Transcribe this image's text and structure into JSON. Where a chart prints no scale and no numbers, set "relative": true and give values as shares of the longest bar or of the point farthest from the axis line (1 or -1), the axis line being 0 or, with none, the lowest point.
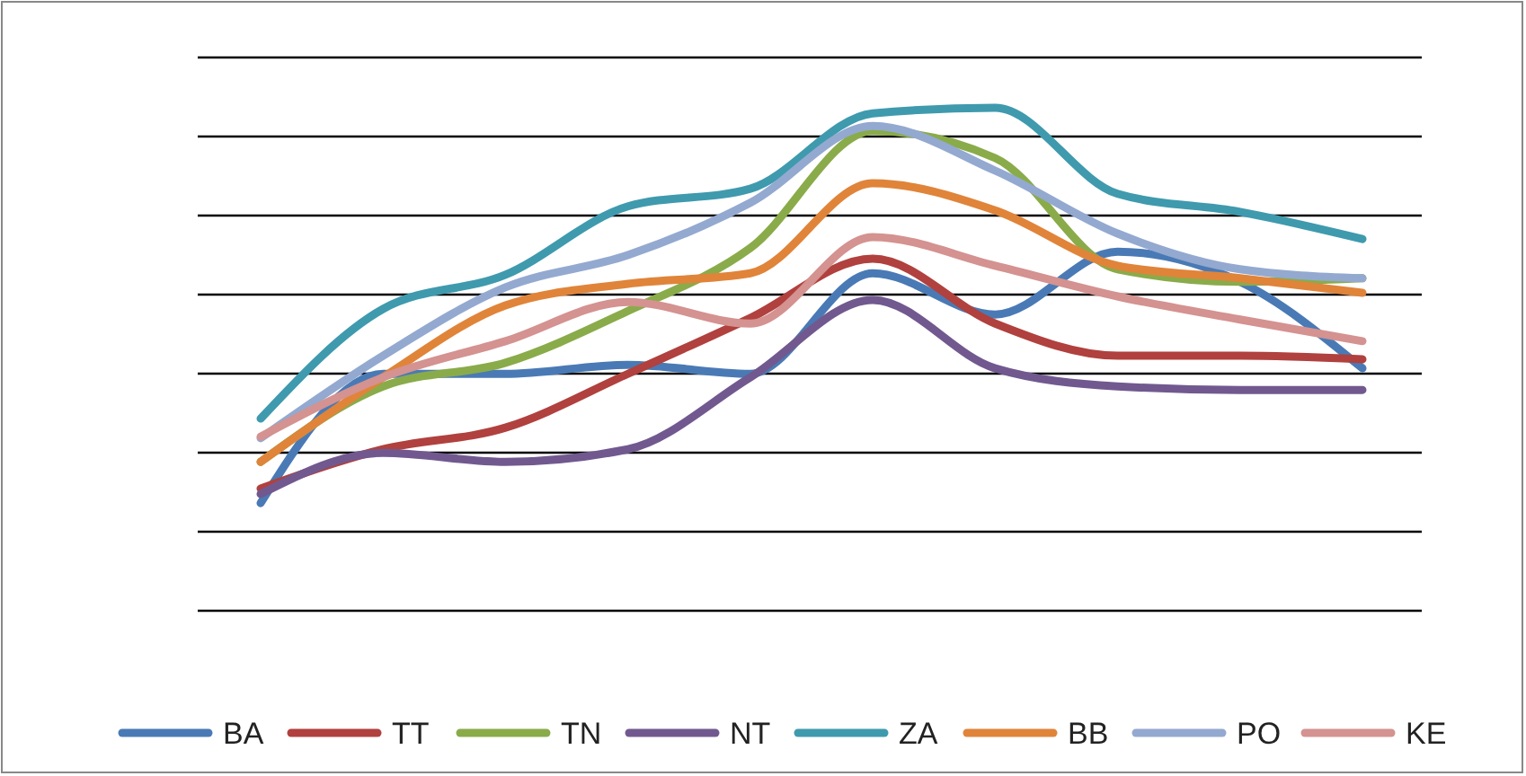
{
  "chart_data": {
    "type": "line",
    "relative": true,
    "grid": true,
    "legend": "bottom",
    "marker": "none",
    "line_style": "solid",
    "categories": [
      null,
      null,
      null,
      null,
      null,
      null,
      null,
      null,
      null,
      null
    ],
    "series": [
      {
        "name": "BA",
        "color": "#4a7ab5",
        "values": [
          0.214,
          0.471,
          0.471,
          0.489,
          0.471,
          0.671,
          0.589,
          0.714,
          0.654,
          0.482
        ]
      },
      {
        "name": "TT",
        "color": "#b0413e",
        "values": [
          0.243,
          0.321,
          0.364,
          0.471,
          0.582,
          0.7,
          0.571,
          0.507,
          0.507,
          0.5
        ]
      },
      {
        "name": "TN",
        "color": "#8aab4a",
        "values": [
          0.296,
          0.446,
          0.493,
          0.596,
          0.721,
          0.954,
          0.9,
          0.679,
          0.654,
          0.661
        ]
      },
      {
        "name": "NT",
        "color": "#71598f",
        "values": [
          0.232,
          0.314,
          0.296,
          0.321,
          0.464,
          0.618,
          0.482,
          0.446,
          0.439,
          0.439
        ]
      },
      {
        "name": "ZA",
        "color": "#3f9aae",
        "values": [
          0.382,
          0.6,
          0.668,
          0.804,
          0.839,
          0.989,
          1,
          0.829,
          0.793,
          0.739
        ]
      },
      {
        "name": "BB",
        "color": "#e0843a",
        "values": [
          0.296,
          0.464,
          0.607,
          0.65,
          0.671,
          0.85,
          0.796,
          0.686,
          0.661,
          0.632
        ]
      },
      {
        "name": "PO",
        "color": "#93a9d0",
        "values": [
          0.343,
          0.507,
          0.643,
          0.707,
          0.811,
          0.964,
          0.875,
          0.75,
          0.679,
          0.661
        ]
      },
      {
        "name": "KE",
        "color": "#d49290",
        "values": [
          0.346,
          0.464,
          0.536,
          0.614,
          0.571,
          0.743,
          0.686,
          0.625,
          0.579,
          0.536
        ]
      }
    ]
  }
}
